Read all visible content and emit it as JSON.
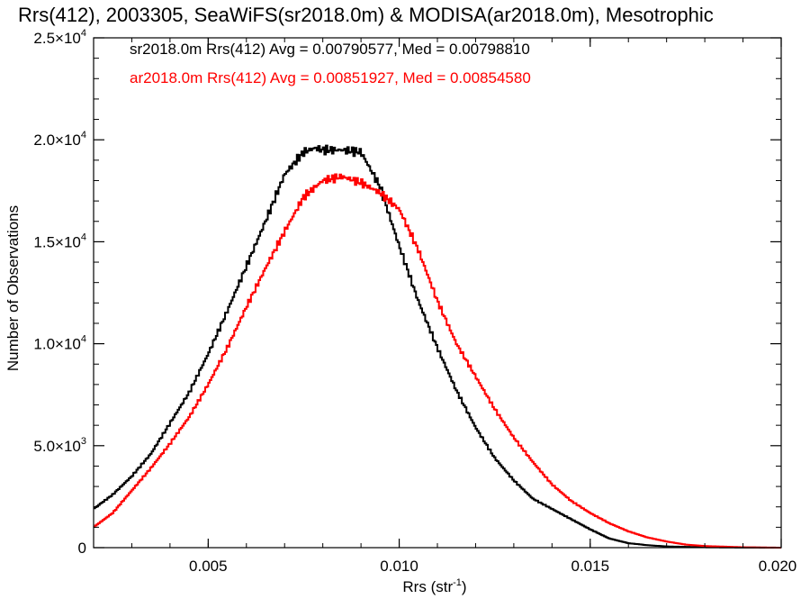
{
  "chart_data": {
    "type": "histogram-step",
    "title": "Rrs(412), 2003305, SeaWiFS(sr2018.0m) & MODISA(ar2018.0m), Mesotrophic",
    "xlabel": "Rrs (str",
    "xlabel_sup": "-1",
    "xlabel_end": ")",
    "ylabel": "Number of Observations",
    "xlim": [
      0.002,
      0.02
    ],
    "ylim": [
      0,
      25000
    ],
    "x_ticks": [
      {
        "value": 0.005,
        "label": "0.005"
      },
      {
        "value": 0.01,
        "label": "0.010"
      },
      {
        "value": 0.015,
        "label": "0.015"
      },
      {
        "value": 0.02,
        "label": "0.020"
      }
    ],
    "y_ticks": [
      {
        "value": 0,
        "mant": "0",
        "exp": ""
      },
      {
        "value": 5000,
        "mant": "5.0×10",
        "exp": "3"
      },
      {
        "value": 10000,
        "mant": "1.0×10",
        "exp": "4"
      },
      {
        "value": 15000,
        "mant": "1.5×10",
        "exp": "4"
      },
      {
        "value": 20000,
        "mant": "2.0×10",
        "exp": "4"
      },
      {
        "value": 25000,
        "mant": "2.5×10",
        "exp": "4"
      }
    ],
    "grid": false,
    "legend_position": "top-left",
    "series": [
      {
        "name": "sr2018.0m",
        "label": "sr2018.0m Rrs(412) Avg = 0.00790577, Med = 0.00798810",
        "color": "#000000",
        "x": [
          0.002,
          0.0025,
          0.003,
          0.0035,
          0.004,
          0.0045,
          0.005,
          0.0055,
          0.006,
          0.0065,
          0.007,
          0.0075,
          0.0078,
          0.008,
          0.0085,
          0.009,
          0.0095,
          0.01,
          0.0105,
          0.011,
          0.0115,
          0.012,
          0.0125,
          0.013,
          0.0135,
          0.014,
          0.0145,
          0.015,
          0.0155,
          0.016,
          0.0165,
          0.017,
          0.018,
          0.019,
          0.02
        ],
        "y": [
          1900,
          2600,
          3500,
          4600,
          6100,
          7600,
          9500,
          11600,
          13800,
          16000,
          18300,
          19400,
          19600,
          19500,
          19500,
          19400,
          17700,
          14800,
          12100,
          9800,
          7700,
          5900,
          4400,
          3300,
          2400,
          1900,
          1400,
          900,
          450,
          220,
          120,
          60,
          20,
          5,
          0
        ]
      },
      {
        "name": "ar2018.0m",
        "label": "ar2018.0m Rrs(412) Avg = 0.00851927, Med = 0.00854580",
        "color": "#ff0000",
        "x": [
          0.002,
          0.0025,
          0.003,
          0.0035,
          0.004,
          0.0045,
          0.005,
          0.0055,
          0.006,
          0.0065,
          0.007,
          0.0075,
          0.008,
          0.0085,
          0.009,
          0.0095,
          0.01,
          0.0105,
          0.011,
          0.0115,
          0.012,
          0.0125,
          0.013,
          0.0135,
          0.014,
          0.0145,
          0.015,
          0.0155,
          0.016,
          0.0165,
          0.017,
          0.0175,
          0.018,
          0.019,
          0.02
        ],
        "y": [
          1000,
          1700,
          2800,
          3900,
          5100,
          6400,
          8000,
          9800,
          11800,
          13700,
          15500,
          17200,
          18000,
          18200,
          17900,
          17400,
          16600,
          14600,
          12100,
          10000,
          8400,
          6800,
          5400,
          4200,
          3100,
          2300,
          1700,
          1200,
          800,
          500,
          300,
          150,
          80,
          20,
          0
        ]
      }
    ]
  }
}
